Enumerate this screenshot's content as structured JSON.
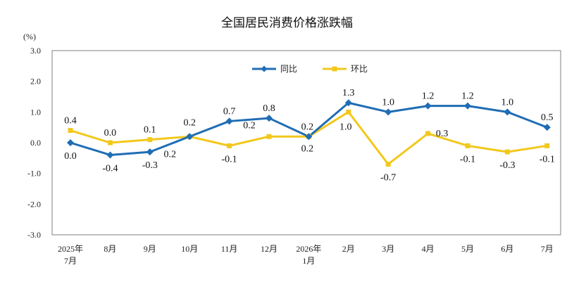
{
  "chart_data": {
    "type": "line",
    "title": "全国居民消费价格涨跌幅",
    "ylabel": "(%)",
    "xlabel": "",
    "ylim": [
      -3.0,
      3.0
    ],
    "yticks": [
      "3.0",
      "2.0",
      "1.0",
      "0.0",
      "-1.0",
      "-2.0",
      "-3.0"
    ],
    "categories": [
      [
        "2025年",
        "7月"
      ],
      [
        "8月"
      ],
      [
        "9月"
      ],
      [
        "10月"
      ],
      [
        "11月"
      ],
      [
        "12月"
      ],
      [
        "2026年",
        "1月"
      ],
      [
        "2月"
      ],
      [
        "3月"
      ],
      [
        "4月"
      ],
      [
        "5月"
      ],
      [
        "6月"
      ],
      [
        "7月"
      ]
    ],
    "grid": false,
    "legend_position": "top-center",
    "series": [
      {
        "name": "同比",
        "color": "#1f6db5",
        "marker": "diamond",
        "values": [
          0.0,
          -0.4,
          -0.3,
          0.2,
          0.7,
          0.8,
          0.2,
          1.3,
          1.0,
          1.2,
          1.2,
          1.0,
          0.5
        ],
        "labels": [
          "0.0",
          "-0.4",
          "-0.3",
          "0.2",
          "0.7",
          "0.8",
          "0.2",
          "1.3",
          "1.0",
          "1.2",
          "1.2",
          "1.0",
          "0.5"
        ]
      },
      {
        "name": "环比",
        "color": "#f2c81c",
        "marker": "square",
        "values": [
          0.4,
          0.0,
          0.1,
          0.2,
          -0.1,
          0.2,
          0.2,
          1.0,
          -0.7,
          0.3,
          -0.1,
          -0.3,
          -0.1
        ],
        "labels": [
          "0.4",
          "0.0",
          "0.1",
          "0.2",
          "-0.1",
          "0.2",
          "0.2",
          "1.0",
          "-0.7",
          "0.3",
          "-0.1",
          "-0.3",
          "-0.1"
        ]
      }
    ]
  }
}
